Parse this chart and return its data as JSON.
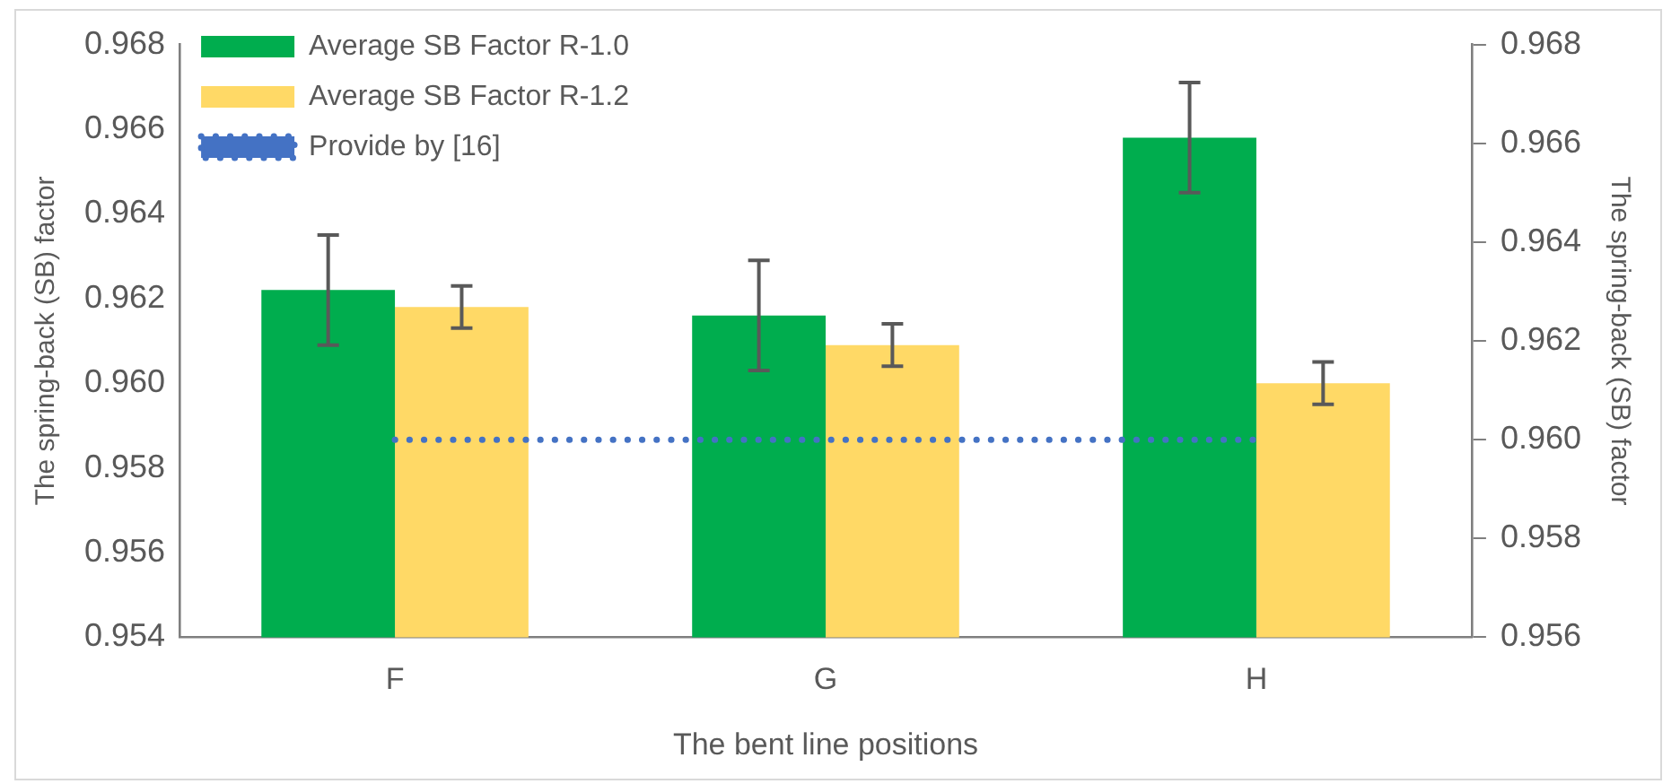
{
  "chart_data": {
    "type": "bar",
    "xlabel": "The bent line positions",
    "ylabel": "The spring-back (SB) factor",
    "y2label": "The spring-back (SB) factor",
    "categories": [
      "F",
      "G",
      "H"
    ],
    "series": [
      {
        "name": "Average SB Factor R-1.0",
        "color": "#00ad4e",
        "values": [
          0.9622,
          0.9616,
          0.9658
        ],
        "errors": [
          0.0013,
          0.0013,
          0.0013
        ]
      },
      {
        "name": "Average SB Factor R-1.2",
        "color": "#ffd966",
        "values": [
          0.9618,
          0.9609,
          0.96
        ],
        "errors": [
          0.0005,
          0.0005,
          0.0005
        ]
      },
      {
        "name": "Provide by [16]",
        "type": "line",
        "axis": "y2",
        "color": "#4472c4",
        "line_style": "dotted",
        "values": [
          0.96,
          0.96,
          0.96
        ]
      }
    ],
    "ylim": [
      0.954,
      0.968
    ],
    "yticks": [
      0.954,
      0.956,
      0.958,
      {
        "value": 0.96,
        "label": "0.960"
      },
      0.962,
      0.964,
      0.966,
      0.968
    ],
    "y2lim": [
      0.956,
      0.968
    ],
    "y2ticks": [
      0.956,
      0.958,
      {
        "value": 0.96,
        "label": "0.960"
      },
      0.962,
      0.964,
      0.966,
      0.968
    ],
    "grid": false,
    "legend": "top left"
  }
}
